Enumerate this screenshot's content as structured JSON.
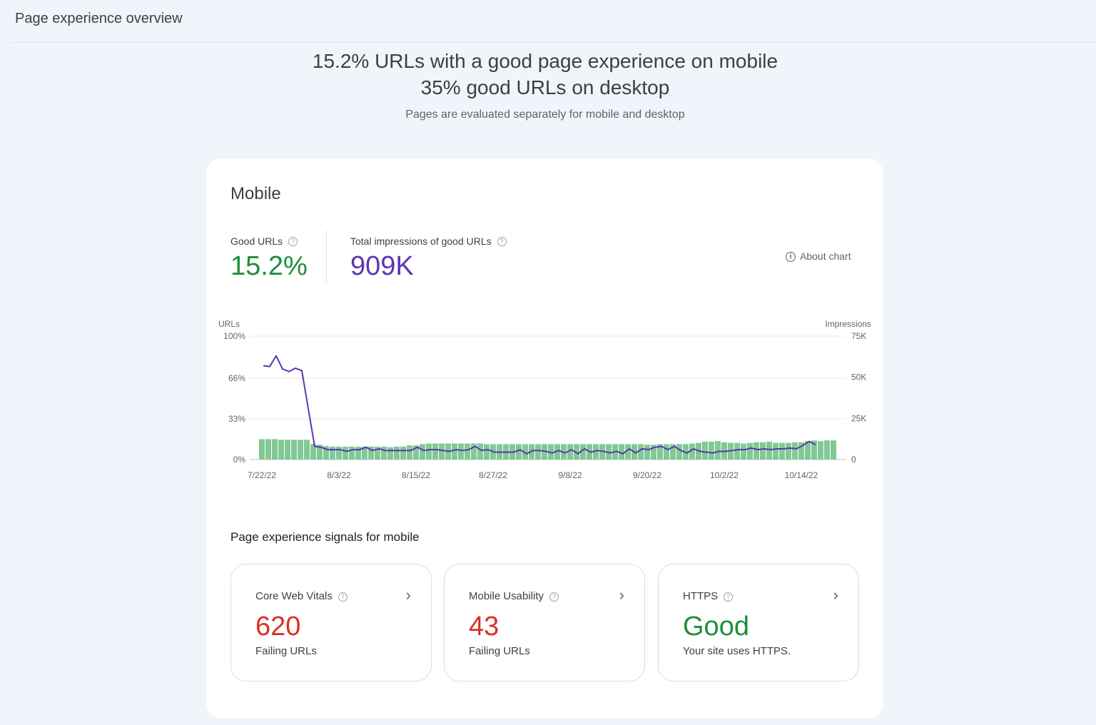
{
  "header": {
    "title": "Page experience overview"
  },
  "summary": {
    "line1": "15.2% URLs with a good page experience on mobile",
    "line2": "35% good URLs on desktop",
    "subtitle": "Pages are evaluated separately for mobile and desktop"
  },
  "mobile": {
    "title": "Mobile",
    "good_urls": {
      "label": "Good URLs",
      "value": "15.2%",
      "color": "#1e8e3e"
    },
    "impressions": {
      "label": "Total impressions of good URLs",
      "value": "909K",
      "color": "#5e35b1"
    },
    "about_chart": "About chart"
  },
  "colors": {
    "bar": "#81c995",
    "line": "#5e35b1",
    "fail": "#d93025",
    "good": "#1e8e3e"
  },
  "chart_data": {
    "type": "bar",
    "left_axis_label": "URLs",
    "right_axis_label": "Impressions",
    "left_ticks": [
      "0%",
      "33%",
      "66%",
      "100%"
    ],
    "left_tick_values": [
      0,
      33,
      66,
      100
    ],
    "right_ticks": [
      "0",
      "25K",
      "50K",
      "75K"
    ],
    "right_tick_values": [
      0,
      25000,
      50000,
      75000
    ],
    "ylim_left": [
      0,
      100
    ],
    "ylim_right": [
      0,
      75000
    ],
    "x_ticks": [
      "7/22/22",
      "8/3/22",
      "8/15/22",
      "8/27/22",
      "9/8/22",
      "9/20/22",
      "10/2/22",
      "10/14/22"
    ],
    "start_date": "7/22/22",
    "grid": true,
    "series": [
      {
        "type": "bar",
        "axis": "left",
        "values": [
          16.5,
          16.5,
          16.5,
          16,
          16,
          16,
          16,
          16,
          12.5,
          12,
          11,
          10.5,
          10.5,
          10.5,
          10.5,
          10.5,
          10.5,
          10.5,
          10.5,
          10.5,
          10,
          10.5,
          10.5,
          11.5,
          11.5,
          12.5,
          13,
          13,
          13,
          13,
          13,
          13,
          13,
          13,
          13,
          12.5,
          12.5,
          12.5,
          12.5,
          12.5,
          12.5,
          12.5,
          12.5,
          12.5,
          12.5,
          12.5,
          12.5,
          12.5,
          12.5,
          12.5,
          12.5,
          12.5,
          12.5,
          12.5,
          12.5,
          12.5,
          12.5,
          12.5,
          12.5,
          12.5,
          12,
          12,
          12.5,
          12.5,
          12.5,
          12.5,
          12.5,
          13,
          13.5,
          14.5,
          14.5,
          15,
          14,
          13.5,
          13.5,
          13,
          13.5,
          14,
          14,
          14.5,
          13.5,
          13.5,
          13.5,
          14,
          14,
          15,
          15.5,
          15,
          15.5,
          15.5
        ]
      },
      {
        "type": "line",
        "axis": "right",
        "values": [
          57000,
          56500,
          63000,
          55000,
          53500,
          55500,
          54000,
          31000,
          8000,
          7500,
          6000,
          6000,
          6000,
          5000,
          6000,
          6000,
          7500,
          5500,
          6500,
          5500,
          5500,
          5500,
          5500,
          5500,
          7500,
          5500,
          6000,
          6000,
          5500,
          5000,
          6000,
          5500,
          6000,
          8000,
          5500,
          6000,
          4500,
          4500,
          4500,
          4500,
          6000,
          3500,
          5500,
          5500,
          5000,
          4000,
          5500,
          4000,
          6000,
          3500,
          6500,
          4500,
          5500,
          5000,
          4000,
          5000,
          3500,
          6500,
          4000,
          6500,
          6000,
          7500,
          8000,
          6000,
          8000,
          5500,
          4000,
          6500,
          5000,
          4500,
          4000,
          5000,
          5000,
          5500,
          6000,
          6000,
          7000,
          6000,
          6500,
          6000,
          6500,
          6500,
          7000,
          6500,
          8500,
          11000,
          9000
        ]
      }
    ]
  },
  "signals": {
    "title": "Page experience signals for mobile",
    "cards": [
      {
        "title": "Core Web Vitals",
        "value": "620",
        "desc": "Failing URLs"
      },
      {
        "title": "Mobile Usability",
        "value": "43",
        "desc": "Failing URLs"
      },
      {
        "title": "HTTPS",
        "value": "Good",
        "desc": "Your site uses HTTPS."
      }
    ]
  }
}
